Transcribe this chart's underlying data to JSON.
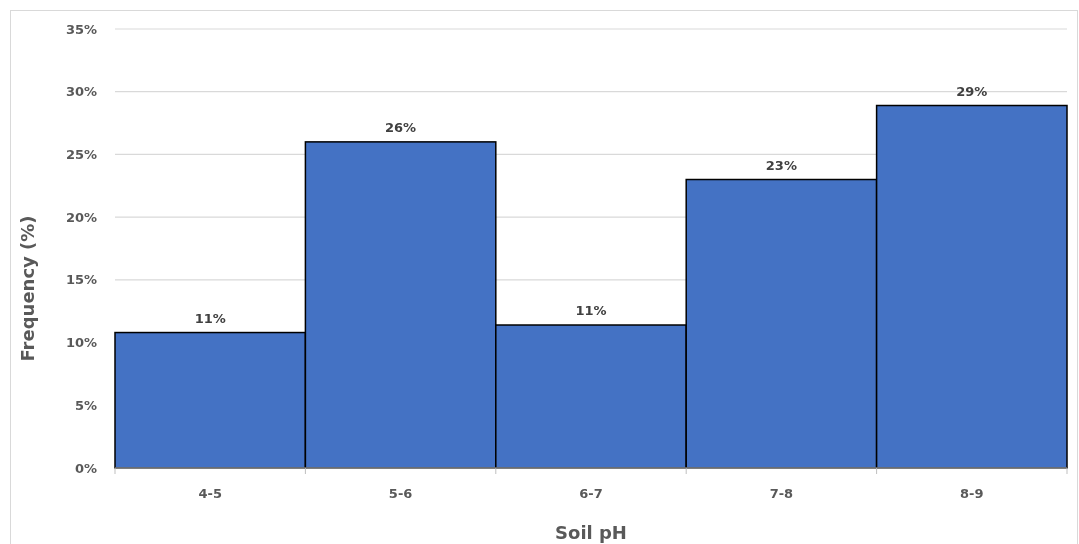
{
  "chart_data": {
    "type": "bar",
    "xlabel": "Soil pH",
    "ylabel": "Frequency (%)",
    "categories": [
      "4-5",
      "5-6",
      "6-7",
      "7-8",
      "8-9"
    ],
    "values": [
      10.8,
      26,
      11.4,
      23,
      28.9
    ],
    "value_labels": [
      "11%",
      "26%",
      "11%",
      "23%",
      "29%"
    ],
    "color": "#4472c4",
    "ylim": [
      0,
      35
    ],
    "yticks": [
      {
        "value": 0,
        "label": "0%"
      },
      {
        "value": 5,
        "label": "5%"
      },
      {
        "value": 10,
        "label": "10%"
      },
      {
        "value": 15,
        "label": "15%"
      },
      {
        "value": 20,
        "label": "20%"
      },
      {
        "value": 25,
        "label": "25%"
      },
      {
        "value": 30,
        "label": "30%"
      },
      {
        "value": 35,
        "label": "35%"
      }
    ],
    "grid": "y"
  }
}
